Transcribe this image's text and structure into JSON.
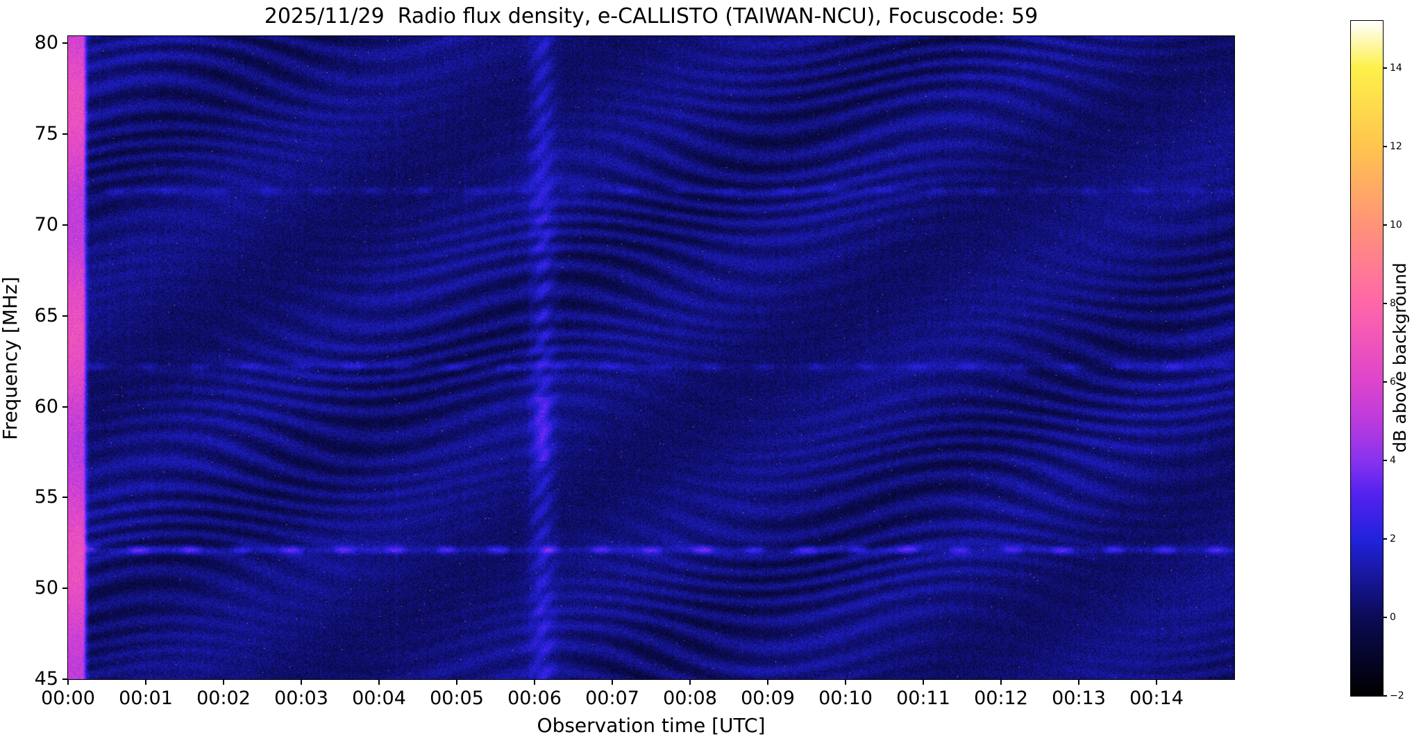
{
  "chart_data": {
    "type": "heatmap",
    "title": "2025/11/29  Radio flux density, e-CALLISTO (TAIWAN-NCU), Focuscode: 59",
    "date": "2025/11/29",
    "instrument": "e-CALLISTO",
    "station": "TAIWAN-NCU",
    "focuscode": "59",
    "xlabel": "Observation time [UTC]",
    "ylabel": "Frequency [MHz]",
    "x_range_min": [
      0,
      15
    ],
    "x_tick_labels": [
      "00:00",
      "00:01",
      "00:02",
      "00:03",
      "00:04",
      "00:05",
      "00:06",
      "00:07",
      "00:08",
      "00:09",
      "00:10",
      "00:11",
      "00:12",
      "00:13",
      "00:14"
    ],
    "ylim_mhz": [
      45,
      80.4
    ],
    "y_ticks_mhz": [
      80,
      75,
      70,
      65,
      60,
      55,
      50,
      45
    ],
    "y_tick_labels": [
      "80",
      "75",
      "70",
      "65",
      "60",
      "55",
      "50",
      "45"
    ],
    "grid": false,
    "colorbar": {
      "label": "dB above background",
      "vmin_db": -2,
      "vmax_db": 15.2,
      "ticks_db": [
        14,
        12,
        10,
        8,
        6,
        4,
        2,
        0,
        -2
      ],
      "tick_labels": [
        "14",
        "12",
        "10",
        "8",
        "6",
        "4",
        "2",
        "0",
        "−2"
      ],
      "colormap": "black-blue-magenta-pink-orange-yellow-white (gnuplot2-like)",
      "stops": [
        {
          "pos": 0.0,
          "color": "#000000"
        },
        {
          "pos": 0.116,
          "color": "#0b0b55"
        },
        {
          "pos": 0.233,
          "color": "#2222dd"
        },
        {
          "pos": 0.3,
          "color": "#5522ee"
        },
        {
          "pos": 0.349,
          "color": "#8833ee"
        },
        {
          "pos": 0.407,
          "color": "#bb3bdd"
        },
        {
          "pos": 0.465,
          "color": "#dd44cc"
        },
        {
          "pos": 0.58,
          "color": "#ff66aa"
        },
        {
          "pos": 0.7,
          "color": "#ff9477"
        },
        {
          "pos": 0.81,
          "color": "#ffc34f"
        },
        {
          "pos": 0.93,
          "color": "#fdf04a"
        },
        {
          "pos": 1.0,
          "color": "#ffffff"
        }
      ]
    },
    "background_level_db": [
      0,
      2
    ],
    "features": [
      {
        "type": "vertical-stripe",
        "label": "bright-startup-column",
        "time_min": [
          0.0,
          0.2
        ],
        "freq_mhz": [
          45,
          80.4
        ],
        "intensity_db": 6,
        "color": "magenta-pink"
      },
      {
        "type": "vertical-band",
        "label": "interference-band-0006",
        "time_min": [
          5.8,
          6.4
        ],
        "freq_mhz": [
          45,
          80.4
        ],
        "intensity_db": 2.5,
        "color": "brighter-blue"
      },
      {
        "type": "horizontal-line",
        "label": "rfi-line-52MHz",
        "freq_mhz": 52.1,
        "intensity_db": 2.6,
        "style": "dashed"
      },
      {
        "type": "horizontal-line",
        "label": "rfi-line-62MHz",
        "freq_mhz": 62.2,
        "intensity_db": 1.1,
        "style": "dashed"
      },
      {
        "type": "horizontal-line",
        "label": "rfi-line-72MHz",
        "freq_mhz": 71.9,
        "intensity_db": 0.9,
        "style": "dashed"
      },
      {
        "type": "texture",
        "label": "wavy-ripple-interference",
        "intensity_db": [
          -1,
          2
        ]
      },
      {
        "type": "speckle",
        "label": "sparse-bright-pixels",
        "intensity_db": [
          5,
          13
        ]
      }
    ]
  }
}
